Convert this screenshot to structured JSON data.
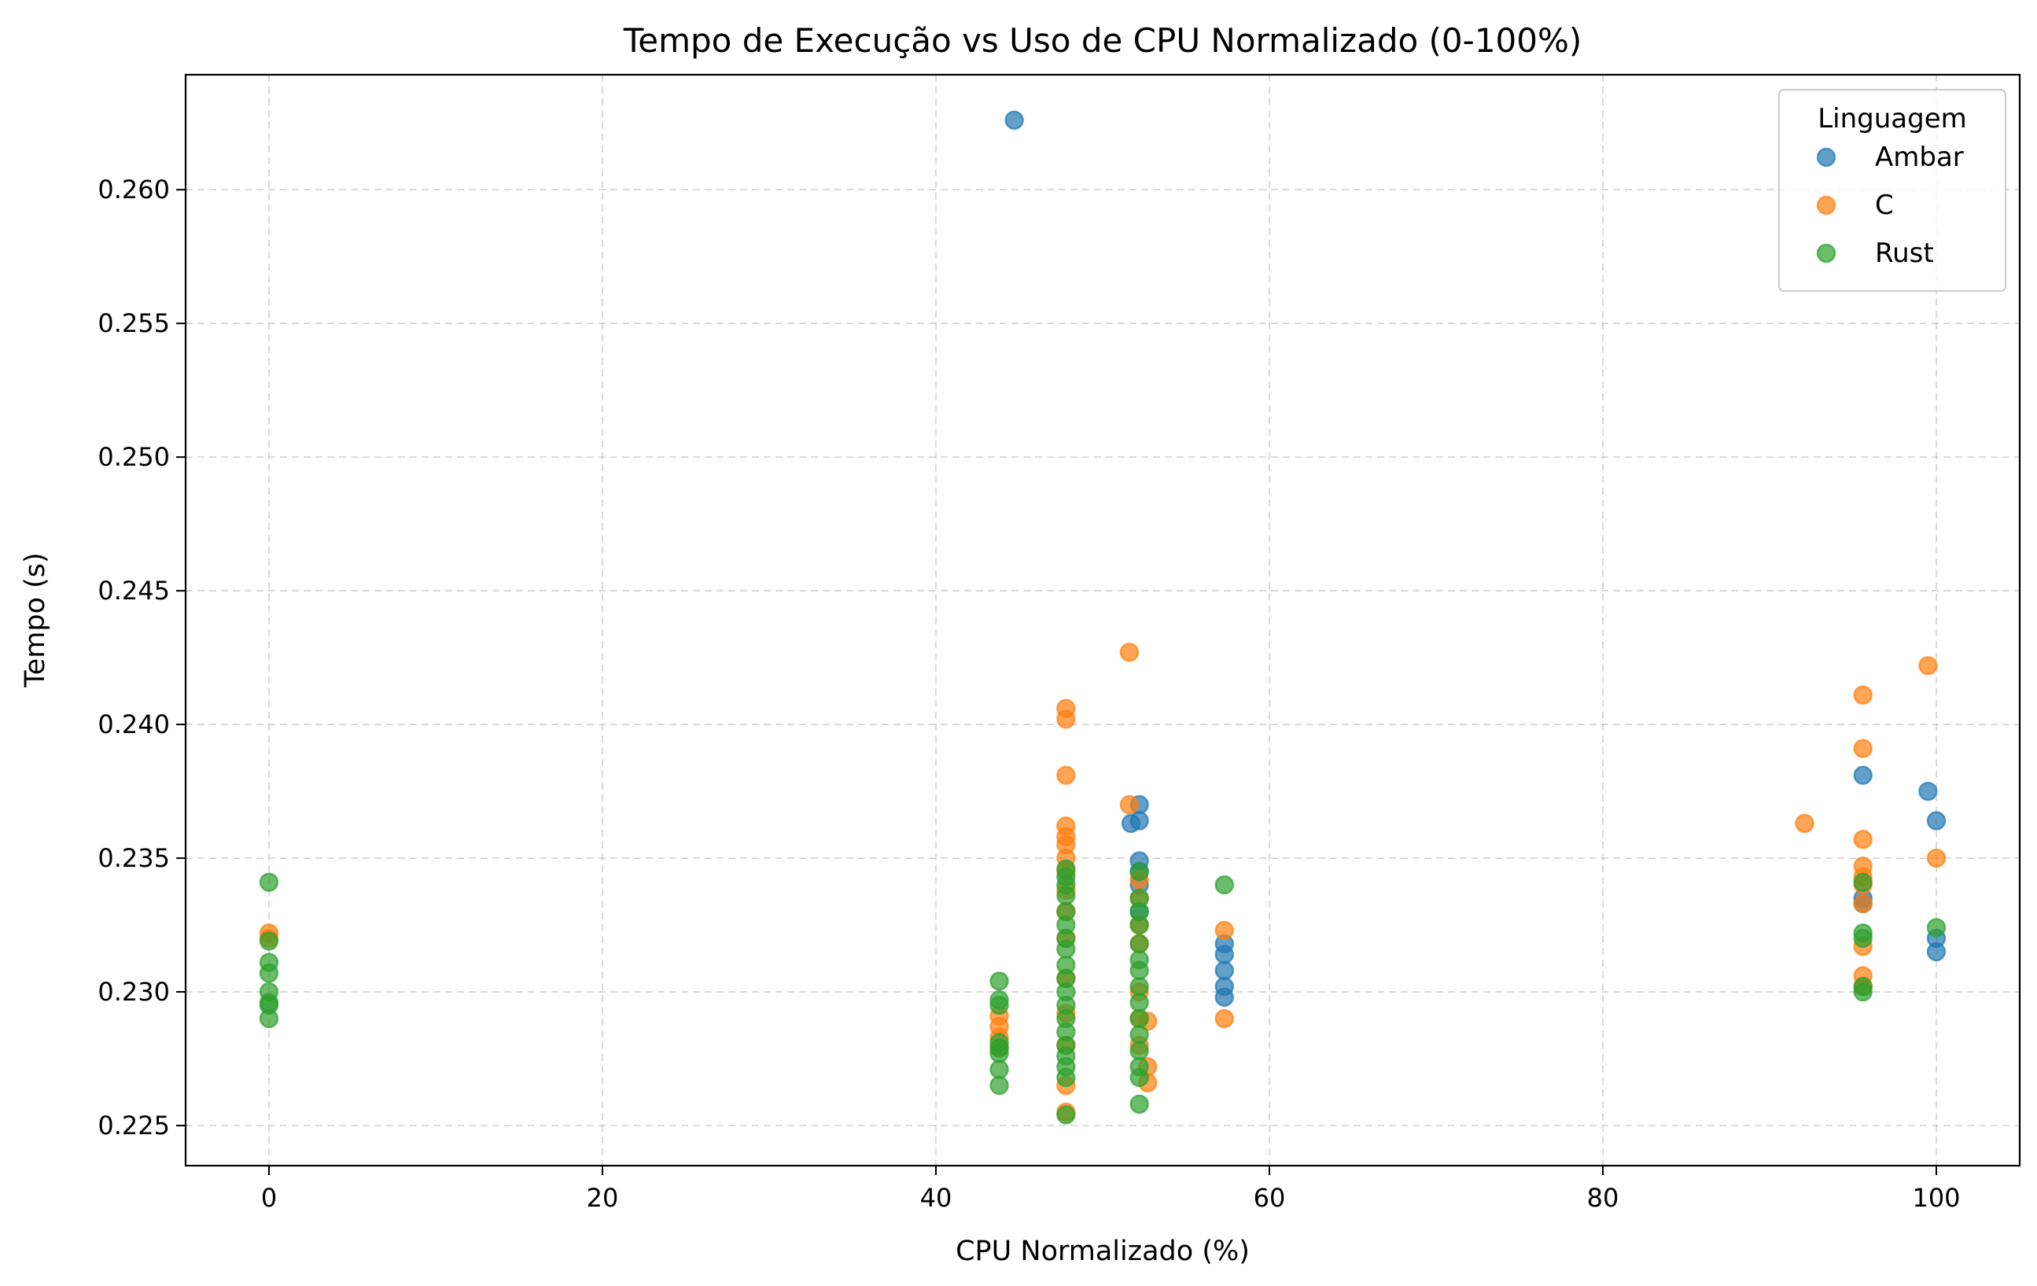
{
  "chart_data": {
    "type": "scatter",
    "title": "Tempo de Execução vs Uso de CPU Normalizado (0-100%)",
    "xlabel": "CPU Normalizado (%)",
    "ylabel": "Tempo (s)",
    "xlim": [
      -5,
      105
    ],
    "ylim": [
      0.2235,
      0.2643
    ],
    "xticks": [
      0,
      20,
      40,
      60,
      80,
      100
    ],
    "xtick_labels": [
      "0",
      "20",
      "40",
      "60",
      "80",
      "100"
    ],
    "yticks": [
      0.225,
      0.23,
      0.235,
      0.24,
      0.245,
      0.25,
      0.255,
      0.26
    ],
    "ytick_labels": [
      "0.225",
      "0.230",
      "0.235",
      "0.240",
      "0.245",
      "0.250",
      "0.255",
      "0.260"
    ],
    "grid": true,
    "legend": {
      "title": "Linguagem",
      "placement": "top-right"
    },
    "series": [
      {
        "name": "Ambar",
        "color": "#1f77b4",
        "points": [
          [
            44.7,
            0.2626
          ],
          [
            51.7,
            0.2363
          ],
          [
            52.2,
            0.237
          ],
          [
            52.2,
            0.2364
          ],
          [
            52.2,
            0.2349
          ],
          [
            52.2,
            0.2345
          ],
          [
            52.2,
            0.234
          ],
          [
            52.2,
            0.233
          ],
          [
            57.3,
            0.2318
          ],
          [
            57.3,
            0.2314
          ],
          [
            57.3,
            0.2308
          ],
          [
            57.3,
            0.2302
          ],
          [
            57.3,
            0.2298
          ],
          [
            95.6,
            0.2381
          ],
          [
            95.6,
            0.2335
          ],
          [
            95.6,
            0.2333
          ],
          [
            99.5,
            0.2375
          ],
          [
            100,
            0.2364
          ],
          [
            100,
            0.232
          ],
          [
            100,
            0.2315
          ]
        ]
      },
      {
        "name": "C",
        "color": "#ff7f0e",
        "points": [
          [
            0,
            0.2322
          ],
          [
            0,
            0.232
          ],
          [
            43.8,
            0.2291
          ],
          [
            43.8,
            0.2287
          ],
          [
            43.8,
            0.2283
          ],
          [
            43.8,
            0.2279
          ],
          [
            47.8,
            0.2406
          ],
          [
            47.8,
            0.2402
          ],
          [
            47.8,
            0.2381
          ],
          [
            47.8,
            0.2362
          ],
          [
            47.8,
            0.2358
          ],
          [
            47.8,
            0.2355
          ],
          [
            47.8,
            0.235
          ],
          [
            47.8,
            0.2345
          ],
          [
            47.8,
            0.2338
          ],
          [
            47.8,
            0.233
          ],
          [
            47.8,
            0.232
          ],
          [
            47.8,
            0.2305
          ],
          [
            47.8,
            0.2292
          ],
          [
            47.8,
            0.228
          ],
          [
            47.8,
            0.2265
          ],
          [
            47.8,
            0.2255
          ],
          [
            51.6,
            0.2427
          ],
          [
            51.6,
            0.237
          ],
          [
            52.2,
            0.2342
          ],
          [
            52.2,
            0.2335
          ],
          [
            52.2,
            0.2325
          ],
          [
            52.2,
            0.2318
          ],
          [
            52.2,
            0.23
          ],
          [
            52.2,
            0.229
          ],
          [
            52.2,
            0.228
          ],
          [
            52.7,
            0.2289
          ],
          [
            52.7,
            0.2272
          ],
          [
            52.7,
            0.2266
          ],
          [
            57.3,
            0.2323
          ],
          [
            57.3,
            0.229
          ],
          [
            92.1,
            0.2363
          ],
          [
            95.6,
            0.2411
          ],
          [
            95.6,
            0.2391
          ],
          [
            95.6,
            0.2357
          ],
          [
            95.6,
            0.2347
          ],
          [
            95.6,
            0.2343
          ],
          [
            95.6,
            0.234
          ],
          [
            95.6,
            0.2333
          ],
          [
            95.6,
            0.2317
          ],
          [
            95.6,
            0.2306
          ],
          [
            95.6,
            0.2302
          ],
          [
            99.5,
            0.2422
          ],
          [
            100,
            0.235
          ]
        ]
      },
      {
        "name": "Rust",
        "color": "#2ca02c",
        "points": [
          [
            0,
            0.2341
          ],
          [
            0,
            0.2319
          ],
          [
            0,
            0.2311
          ],
          [
            0,
            0.2307
          ],
          [
            0,
            0.23
          ],
          [
            0,
            0.2296
          ],
          [
            0,
            0.2295
          ],
          [
            0,
            0.229
          ],
          [
            43.8,
            0.2304
          ],
          [
            43.8,
            0.2297
          ],
          [
            43.8,
            0.2295
          ],
          [
            43.8,
            0.2281
          ],
          [
            43.8,
            0.2279
          ],
          [
            43.8,
            0.2277
          ],
          [
            43.8,
            0.2271
          ],
          [
            43.8,
            0.2265
          ],
          [
            47.8,
            0.2346
          ],
          [
            47.8,
            0.2343
          ],
          [
            47.8,
            0.234
          ],
          [
            47.8,
            0.2336
          ],
          [
            47.8,
            0.233
          ],
          [
            47.8,
            0.2325
          ],
          [
            47.8,
            0.232
          ],
          [
            47.8,
            0.2316
          ],
          [
            47.8,
            0.231
          ],
          [
            47.8,
            0.2305
          ],
          [
            47.8,
            0.23
          ],
          [
            47.8,
            0.2295
          ],
          [
            47.8,
            0.229
          ],
          [
            47.8,
            0.2285
          ],
          [
            47.8,
            0.228
          ],
          [
            47.8,
            0.2276
          ],
          [
            47.8,
            0.2272
          ],
          [
            47.8,
            0.2268
          ],
          [
            47.8,
            0.2254
          ],
          [
            52.2,
            0.2345
          ],
          [
            52.2,
            0.2335
          ],
          [
            52.2,
            0.233
          ],
          [
            52.2,
            0.2325
          ],
          [
            52.2,
            0.2318
          ],
          [
            52.2,
            0.2312
          ],
          [
            52.2,
            0.2308
          ],
          [
            52.2,
            0.2302
          ],
          [
            52.2,
            0.2296
          ],
          [
            52.2,
            0.229
          ],
          [
            52.2,
            0.2284
          ],
          [
            52.2,
            0.2278
          ],
          [
            52.2,
            0.2272
          ],
          [
            52.2,
            0.2268
          ],
          [
            52.2,
            0.2258
          ],
          [
            57.3,
            0.234
          ],
          [
            95.6,
            0.2341
          ],
          [
            95.6,
            0.2322
          ],
          [
            95.6,
            0.232
          ],
          [
            95.6,
            0.2302
          ],
          [
            95.6,
            0.23
          ],
          [
            100,
            0.2324
          ]
        ]
      }
    ]
  }
}
